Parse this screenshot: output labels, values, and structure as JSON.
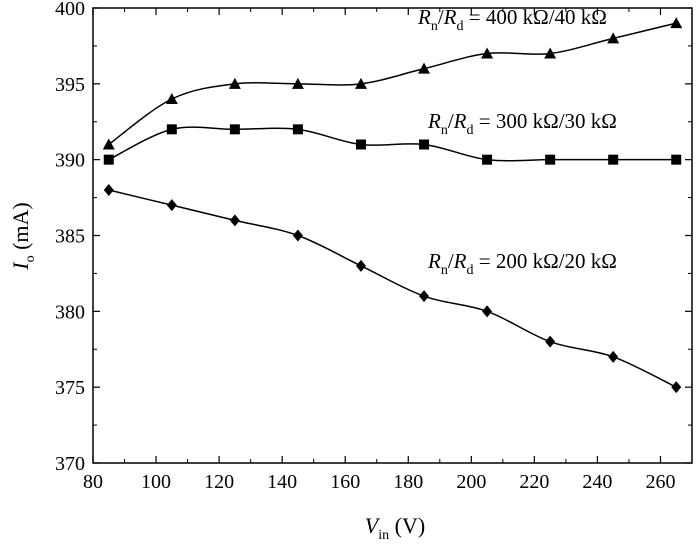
{
  "chart_data": {
    "type": "line",
    "title": "",
    "xlabel": {
      "symbol": "V",
      "sub": "in",
      "unit": " (V)"
    },
    "ylabel": {
      "symbol": "I",
      "sub": "o",
      "unit": " (mA)"
    },
    "xlim": [
      80,
      270
    ],
    "ylim": [
      370,
      400
    ],
    "xticks": [
      80,
      100,
      120,
      140,
      160,
      180,
      200,
      220,
      240,
      260
    ],
    "yticks": [
      370,
      375,
      380,
      385,
      390,
      395,
      400
    ],
    "x": [
      85,
      105,
      125,
      145,
      165,
      185,
      205,
      225,
      245,
      265
    ],
    "grid": false,
    "series": [
      {
        "label_parts": [
          "R",
          "n",
          "/",
          "R",
          "d",
          " = 400 kΩ/40 kΩ"
        ],
        "marker": "triangle",
        "values": [
          391,
          394,
          395,
          395,
          395,
          396,
          397,
          397,
          398,
          399
        ]
      },
      {
        "label_parts": [
          "R",
          "n",
          "/",
          "R",
          "d",
          " = 300 kΩ/30 kΩ"
        ],
        "marker": "square",
        "values": [
          390,
          392,
          392,
          392,
          391,
          391,
          390,
          390,
          390,
          390
        ]
      },
      {
        "label_parts": [
          "R",
          "n",
          "/",
          "R",
          "d",
          " = 200 kΩ/20 kΩ"
        ],
        "marker": "diamond",
        "values": [
          388,
          387,
          386,
          385,
          383,
          381,
          380,
          378,
          377,
          375
        ]
      }
    ]
  }
}
